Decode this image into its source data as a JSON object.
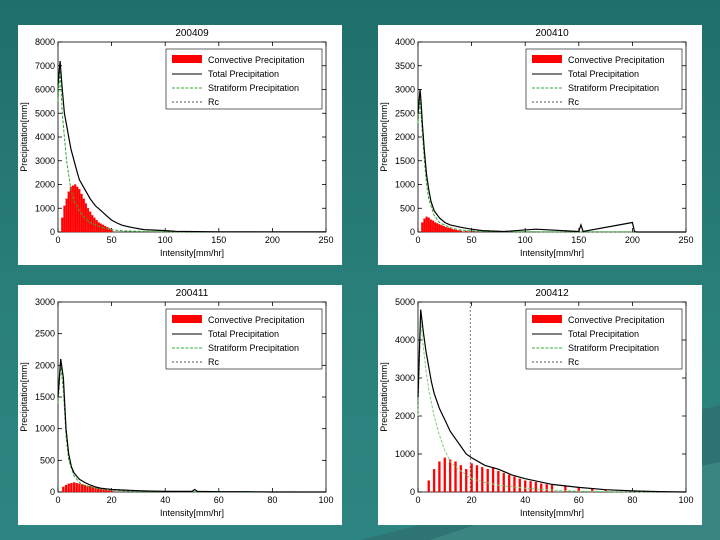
{
  "chart_data": [
    {
      "type": "bar",
      "title": "200409",
      "xlabel": "Intensity[mm/hr]",
      "ylabel": "Precipitation[mm]",
      "xlim": [
        0,
        250
      ],
      "ylim": [
        0,
        8000
      ],
      "xticks": [
        0,
        50,
        100,
        150,
        200,
        250
      ],
      "xtick_labels": [
        "0",
        "50",
        "100",
        "150",
        "200",
        "250"
      ],
      "yticks": [
        0,
        1000,
        2000,
        3000,
        4000,
        5000,
        6000,
        7000,
        8000
      ],
      "ytick_labels": [
        "0",
        "1000",
        "2000",
        "3000",
        "4000",
        "5000",
        "6000",
        "7000",
        "8000"
      ],
      "legend": [
        "Convective Precipitation",
        "Total Precipitation",
        "Stratiform Precipitation",
        "Rc"
      ],
      "legend_position": "top-right",
      "series": [
        {
          "name": "Total Precipitation",
          "style": "line",
          "color": "#000000",
          "x": [
            0,
            2,
            4,
            6,
            8,
            10,
            12,
            15,
            18,
            20,
            25,
            30,
            35,
            40,
            45,
            50,
            55,
            60,
            70,
            80,
            90,
            100,
            110,
            120,
            150,
            200,
            250
          ],
          "values": [
            6200,
            7200,
            6000,
            5000,
            4500,
            4000,
            3500,
            3000,
            2500,
            2200,
            1800,
            1400,
            1100,
            900,
            700,
            500,
            380,
            280,
            180,
            100,
            80,
            60,
            30,
            20,
            10,
            10,
            5
          ]
        },
        {
          "name": "Stratiform Precipitation",
          "style": "line",
          "color": "#33a833",
          "x": [
            0,
            2,
            4,
            6,
            8,
            10,
            12,
            15,
            20,
            25,
            30,
            40,
            50,
            60,
            80,
            100,
            150,
            250
          ],
          "values": [
            5500,
            6800,
            5000,
            4000,
            3000,
            2400,
            1800,
            1300,
            900,
            600,
            400,
            200,
            100,
            50,
            20,
            10,
            5,
            0
          ]
        },
        {
          "name": "Convective Precipitation",
          "style": "bar",
          "color": "#ff0000",
          "x": [
            4,
            6,
            8,
            10,
            12,
            14,
            16,
            18,
            20,
            22,
            24,
            26,
            28,
            30,
            32,
            34,
            36,
            38,
            40,
            42,
            44,
            46,
            48,
            50
          ],
          "values": [
            600,
            1100,
            1400,
            1700,
            1900,
            1950,
            2000,
            1900,
            1800,
            1600,
            1400,
            1200,
            1000,
            850,
            700,
            600,
            500,
            400,
            350,
            300,
            250,
            200,
            150,
            100
          ]
        }
      ]
    },
    {
      "type": "bar",
      "title": "200410",
      "xlabel": "Intensity[mm/hr]",
      "ylabel": "Precipitation[mm]",
      "xlim": [
        0,
        250
      ],
      "ylim": [
        0,
        4000
      ],
      "xticks": [
        0,
        50,
        100,
        150,
        200,
        250
      ],
      "xtick_labels": [
        "0",
        "50",
        "100",
        "150",
        "200",
        "250"
      ],
      "yticks": [
        0,
        500,
        1000,
        1500,
        2000,
        2500,
        3000,
        3500,
        4000
      ],
      "ytick_labels": [
        "0",
        "500",
        "1000",
        "1500",
        "2000",
        "2500",
        "3000",
        "3500",
        "4000"
      ],
      "legend": [
        "Convective Precipitation",
        "Total Precipitation",
        "Stratiform Precipitation",
        "Rc"
      ],
      "legend_position": "top-right",
      "series": [
        {
          "name": "Total Precipitation",
          "style": "line",
          "color": "#000000",
          "x": [
            0,
            2,
            3,
            4,
            6,
            8,
            10,
            12,
            15,
            20,
            25,
            30,
            40,
            50,
            60,
            80,
            110,
            150,
            152,
            154,
            200,
            202,
            204,
            250
          ],
          "values": [
            2500,
            3000,
            2700,
            2300,
            1700,
            1200,
            900,
            650,
            450,
            300,
            200,
            150,
            100,
            60,
            30,
            10,
            60,
            10,
            150,
            10,
            200,
            10,
            0,
            0
          ]
        },
        {
          "name": "Stratiform Precipitation",
          "style": "line",
          "color": "#33a833",
          "x": [
            0,
            2,
            4,
            6,
            8,
            10,
            15,
            20,
            30,
            40,
            60,
            100,
            250
          ],
          "values": [
            2300,
            2800,
            2100,
            1500,
            1000,
            700,
            350,
            200,
            90,
            40,
            10,
            5,
            0
          ]
        },
        {
          "name": "Convective Precipitation",
          "style": "bar",
          "color": "#ff0000",
          "x": [
            4,
            6,
            8,
            10,
            12,
            14,
            16,
            18,
            20,
            22,
            24,
            26,
            28,
            30,
            32,
            34,
            36,
            38,
            40,
            45,
            50,
            55,
            60
          ],
          "values": [
            200,
            280,
            320,
            300,
            260,
            240,
            200,
            180,
            160,
            140,
            120,
            100,
            90,
            80,
            60,
            50,
            40,
            30,
            25,
            20,
            15,
            10,
            5
          ]
        }
      ]
    },
    {
      "type": "bar",
      "title": "200411",
      "xlabel": "Intensity[mm/hr]",
      "ylabel": "Precipitation[mm]",
      "xlim": [
        0,
        100
      ],
      "ylim": [
        0,
        3000
      ],
      "xticks": [
        0,
        20,
        40,
        60,
        80,
        100
      ],
      "xtick_labels": [
        "0",
        "20",
        "40",
        "60",
        "80",
        "100"
      ],
      "yticks": [
        0,
        500,
        1000,
        1500,
        2000,
        2500,
        3000
      ],
      "ytick_labels": [
        "0",
        "500",
        "1000",
        "1500",
        "2000",
        "2500",
        "3000"
      ],
      "legend": [
        "Convective Precipitation",
        "Total Precipitation",
        "Stratiform Precipitation",
        "Rc"
      ],
      "legend_position": "top-right",
      "series": [
        {
          "name": "Total Precipitation",
          "style": "line",
          "color": "#000000",
          "x": [
            0,
            1,
            2,
            3,
            4,
            5,
            6,
            8,
            10,
            12,
            14,
            16,
            18,
            20,
            25,
            30,
            35,
            40,
            50,
            51,
            52,
            60,
            70,
            80,
            90,
            100
          ],
          "values": [
            1500,
            2100,
            1800,
            1000,
            600,
            400,
            300,
            200,
            150,
            110,
            80,
            60,
            50,
            40,
            30,
            20,
            15,
            10,
            10,
            40,
            10,
            5,
            5,
            0,
            0,
            0
          ]
        },
        {
          "name": "Stratiform Precipitation",
          "style": "line",
          "color": "#33a833",
          "x": [
            0,
            1,
            2,
            3,
            4,
            6,
            8,
            10,
            15,
            20,
            30,
            50,
            100
          ],
          "values": [
            1400,
            2000,
            1600,
            900,
            500,
            250,
            150,
            100,
            50,
            30,
            10,
            5,
            0
          ]
        },
        {
          "name": "Convective Precipitation",
          "style": "bar",
          "color": "#ff0000",
          "x": [
            2,
            3,
            4,
            5,
            6,
            7,
            8,
            9,
            10,
            11,
            12,
            13,
            14,
            15,
            16,
            17,
            18,
            19,
            20
          ],
          "values": [
            80,
            110,
            130,
            140,
            150,
            140,
            130,
            120,
            110,
            100,
            90,
            80,
            70,
            60,
            50,
            40,
            30,
            25,
            20
          ]
        }
      ]
    },
    {
      "type": "bar",
      "title": "200412",
      "xlabel": "Intensity[mm/hr]",
      "ylabel": "Precipitation[mm]",
      "xlim": [
        0,
        100
      ],
      "ylim": [
        0,
        5000
      ],
      "xticks": [
        0,
        20,
        40,
        60,
        80,
        100
      ],
      "xtick_labels": [
        "0",
        "20",
        "40",
        "60",
        "80",
        "100"
      ],
      "yticks": [
        0,
        1000,
        2000,
        3000,
        4000,
        5000
      ],
      "ytick_labels": [
        "0",
        "1000",
        "2000",
        "3000",
        "4000",
        "5000"
      ],
      "legend": [
        "Convective Precipitation",
        "Total Precipitation",
        "Stratiform Precipitation",
        "Rc"
      ],
      "legend_position": "top-right",
      "rc_line": 19.5,
      "series": [
        {
          "name": "Total Precipitation",
          "style": "line",
          "color": "#000000",
          "x": [
            0,
            1,
            2,
            3,
            4,
            5,
            6,
            8,
            10,
            12,
            14,
            16,
            18,
            20,
            25,
            30,
            35,
            40,
            50,
            60,
            70,
            80,
            90,
            100
          ],
          "values": [
            2500,
            4800,
            4200,
            3700,
            3300,
            2900,
            2600,
            2200,
            1900,
            1600,
            1400,
            1200,
            1000,
            900,
            700,
            600,
            450,
            350,
            200,
            120,
            60,
            30,
            10,
            0
          ]
        },
        {
          "name": "Stratiform Precipitation",
          "style": "line",
          "color": "#7dcf7d",
          "x": [
            0,
            1,
            2,
            3,
            4,
            6,
            8,
            10,
            12,
            15,
            18,
            20,
            25,
            30,
            40,
            50,
            60,
            80,
            100
          ],
          "values": [
            2000,
            4500,
            3800,
            3200,
            2700,
            2000,
            1500,
            1100,
            800,
            600,
            450,
            350,
            250,
            180,
            100,
            50,
            20,
            5,
            0
          ]
        },
        {
          "name": "Convective Precipitation",
          "style": "bar",
          "color": "#ff0000",
          "x": [
            4,
            6,
            8,
            10,
            12,
            14,
            16,
            18,
            20,
            22,
            24,
            26,
            28,
            30,
            32,
            34,
            36,
            38,
            40,
            42,
            44,
            46,
            48,
            50,
            55,
            60,
            65,
            70
          ],
          "values": [
            300,
            600,
            800,
            900,
            850,
            800,
            700,
            600,
            750,
            700,
            650,
            600,
            650,
            550,
            500,
            450,
            400,
            350,
            300,
            280,
            260,
            220,
            200,
            180,
            150,
            120,
            80,
            50
          ]
        }
      ]
    }
  ]
}
